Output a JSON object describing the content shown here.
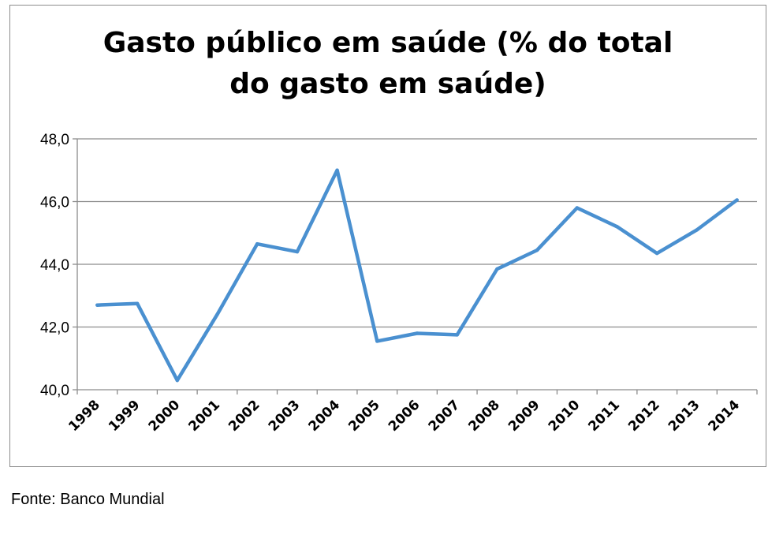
{
  "chart_data": {
    "type": "line",
    "title_lines": [
      "Gasto público em saúde (% do total",
      "do gasto em saúde)"
    ],
    "xlabel": "",
    "ylabel": "",
    "categories": [
      "1998",
      "1999",
      "2000",
      "2001",
      "2002",
      "2003",
      "2004",
      "2005",
      "2006",
      "2007",
      "2008",
      "2009",
      "2010",
      "2011",
      "2012",
      "2013",
      "2014"
    ],
    "series": [
      {
        "values": [
          42.7,
          42.75,
          40.3,
          42.4,
          44.65,
          44.4,
          47.0,
          41.55,
          41.8,
          41.75,
          43.85,
          44.45,
          45.8,
          45.2,
          44.35,
          45.1,
          46.05
        ]
      }
    ],
    "ylim": [
      40,
      48
    ],
    "yticks": [
      "40,0",
      "42,0",
      "44,0",
      "46,0",
      "48,0"
    ],
    "ytick_values": [
      40,
      42,
      44,
      46,
      48
    ],
    "grid": true,
    "legend": "none",
    "line_color": "#4a90d0",
    "grid_color": "#8c8c8c"
  },
  "footer": {
    "source": "Fonte: Banco Mundial"
  }
}
